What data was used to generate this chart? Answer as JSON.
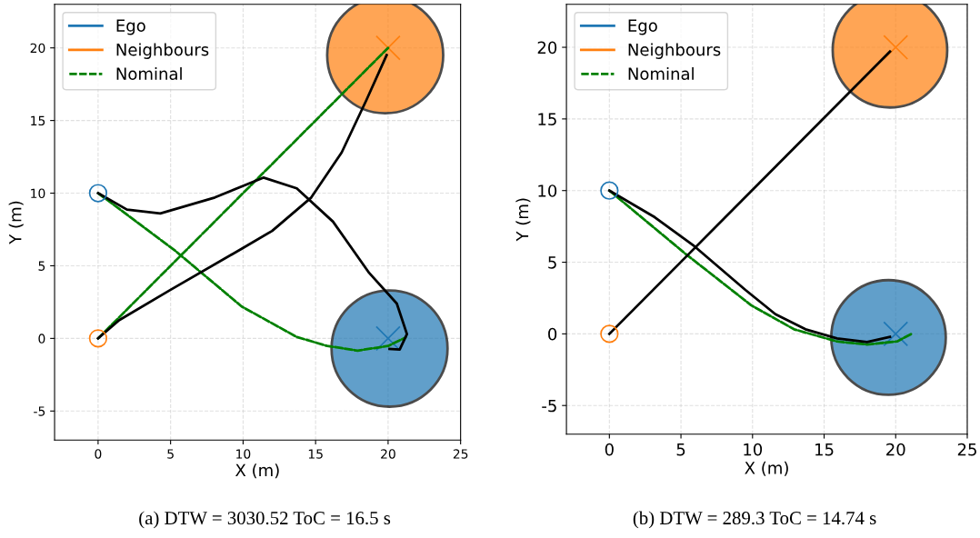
{
  "chart_data": [
    {
      "type": "line",
      "xlabel": "X (m)",
      "ylabel": "Y (m)",
      "xlim": [
        -3,
        25
      ],
      "ylim": [
        -7,
        23
      ],
      "xticks": [
        0,
        5,
        10,
        15,
        20,
        25
      ],
      "yticks": [
        -5,
        0,
        5,
        10,
        15,
        20
      ],
      "grid": true,
      "legend": "top left",
      "annotations": [
        "(a) DTW = 3030.52 ToC = 16.5 s"
      ],
      "series": [
        {
          "name": "Ego",
          "type": "scatter",
          "marker": "circle",
          "color": "#1f77b4",
          "x": [
            0
          ],
          "values": [
            10
          ]
        },
        {
          "name": "Neighbours",
          "type": "scatter",
          "marker": "circle",
          "color": "#ff7f0e",
          "x": [
            0
          ],
          "values": [
            0
          ]
        },
        {
          "name": "Nominal",
          "color": "#008000",
          "line_style": "dashed",
          "x": [
            0,
            5.3,
            9.9,
            13.7,
            15.8,
            17.9,
            20,
            21.2
          ],
          "values": [
            10,
            6.05,
            2.2,
            0.1,
            -0.52,
            -0.84,
            -0.52,
            0.06
          ]
        },
        {
          "color": "#008000",
          "line_style": "dashed",
          "x": [
            0,
            20
          ],
          "values": [
            0,
            20
          ]
        },
        {
          "type": "bubble",
          "color": "#1f77b4",
          "x": [
            20.1
          ],
          "values": [
            -0.7
          ],
          "sizes": [
            1
          ]
        },
        {
          "type": "bubble",
          "color": "#ff7f0e",
          "x": [
            19.8
          ],
          "values": [
            19.5
          ],
          "sizes": [
            1
          ]
        },
        {
          "color": "#000000",
          "line_style": "solid",
          "x": [
            0,
            1.99,
            4.29,
            8.05,
            11.4,
            13.7,
            16.2,
            18.7,
            20.6,
            21.3,
            20.8,
            20.1
          ],
          "values": [
            10,
            8.87,
            8.6,
            9.7,
            11.07,
            10.33,
            8.04,
            4.5,
            2.4,
            0.3,
            -0.77,
            -0.73
          ]
        },
        {
          "color": "#000000",
          "line_style": "solid",
          "x": [
            0,
            1.46,
            5.0,
            9.9,
            12.0,
            14.7,
            16.8,
            18.5,
            19.9
          ],
          "values": [
            0,
            1.26,
            3.35,
            6.17,
            7.4,
            9.7,
            12.8,
            16.4,
            19.5
          ]
        },
        {
          "type": "scatter",
          "marker": "cross",
          "color": "#1f77b4",
          "x": [
            20
          ],
          "values": [
            0
          ]
        },
        {
          "type": "scatter",
          "marker": "cross",
          "color": "#ff7f0e",
          "x": [
            20
          ],
          "values": [
            20
          ]
        }
      ]
    },
    {
      "type": "line",
      "xlabel": "X (m)",
      "ylabel": "Y (m)",
      "xlim": [
        -3,
        25
      ],
      "ylim": [
        -7,
        23
      ],
      "xticks": [
        0,
        5,
        10,
        15,
        20,
        25
      ],
      "yticks": [
        -5,
        0,
        5,
        10,
        15,
        20
      ],
      "grid": true,
      "legend": "top left",
      "annotations": [
        "(b) DTW = 289.3 ToC = 14.74 s"
      ],
      "series": [
        {
          "name": "Ego",
          "type": "scatter",
          "marker": "circle",
          "color": "#1f77b4",
          "x": [
            0
          ],
          "values": [
            10
          ]
        },
        {
          "name": "Neighbours",
          "type": "scatter",
          "marker": "circle",
          "color": "#ff7f0e",
          "x": [
            0
          ],
          "values": [
            0
          ]
        },
        {
          "name": "Nominal",
          "color": "#008000",
          "line_style": "dashed",
          "x": [
            0,
            5.3,
            9.9,
            12.9,
            15.9,
            18,
            20.1,
            21.1
          ],
          "values": [
            10,
            5.6,
            2.0,
            0.32,
            -0.53,
            -0.74,
            -0.53,
            0
          ]
        },
        {
          "type": "bubble",
          "color": "#1f77b4",
          "x": [
            19.5
          ],
          "values": [
            -0.25
          ],
          "sizes": [
            1
          ]
        },
        {
          "type": "bubble",
          "color": "#ff7f0e",
          "x": [
            19.6
          ],
          "values": [
            19.8
          ],
          "sizes": [
            1
          ]
        },
        {
          "color": "#000000",
          "line_style": "solid",
          "x": [
            0,
            3.17,
            5.92,
            9.5,
            11.6,
            13.7,
            15.9,
            18,
            19.6
          ],
          "values": [
            10,
            8.14,
            6.13,
            3.07,
            1.37,
            0.32,
            -0.32,
            -0.57,
            -0.21
          ]
        },
        {
          "color": "#000000",
          "line_style": "solid",
          "x": [
            0,
            19.6
          ],
          "values": [
            0,
            19.7
          ]
        },
        {
          "type": "scatter",
          "marker": "cross",
          "color": "#1f77b4",
          "x": [
            20
          ],
          "values": [
            0
          ]
        },
        {
          "type": "scatter",
          "marker": "cross",
          "color": "#ff7f0e",
          "x": [
            20
          ],
          "values": [
            20
          ]
        }
      ]
    }
  ]
}
